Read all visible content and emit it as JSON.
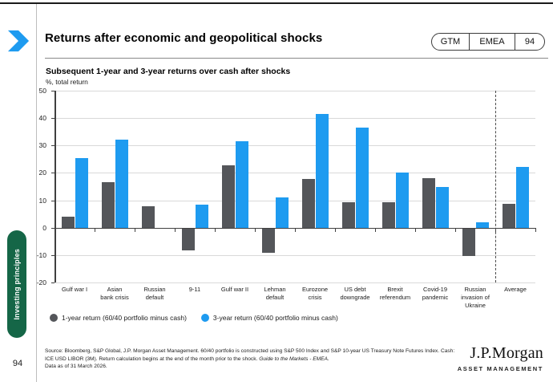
{
  "sidebar": {
    "section_label": "Investing principles",
    "section_color": "#156647",
    "page_number": "94"
  },
  "header": {
    "title": "Returns after economic and geopolitical shocks",
    "badge": {
      "gtm": "GTM",
      "region": "EMEA",
      "page": "94"
    }
  },
  "chart": {
    "subtitle": "Subsequent 1-year and 3-year returns over cash after shocks",
    "unit_label": "%, total return"
  },
  "chart_data": {
    "type": "bar",
    "title": "Subsequent 1-year and 3-year returns over cash after shocks",
    "ylabel": "%, total return",
    "ylim": [
      -20,
      50
    ],
    "ytick_interval": 10,
    "grid": true,
    "legend_position": "bottom",
    "categories": [
      "Gulf war I",
      "Asian\nbank crisis",
      "Russian\ndefault",
      "9-11",
      "Gulf war II",
      "Lehman\ndefault",
      "Eurozone\ncrisis",
      "US debt\ndowngrade",
      "Brexit\nreferendum",
      "Covid-19\npandemic",
      "Russian\ninvasion of\nUkraine",
      "Average"
    ],
    "series": [
      {
        "name": "1-year return (60/40 portfolio minus cash)",
        "color": "#54565A",
        "values": [
          4.0,
          16.5,
          7.8,
          -8.4,
          22.7,
          -9.3,
          17.8,
          9.4,
          9.2,
          18.0,
          -10.3,
          8.7
        ]
      },
      {
        "name": "3-year return (60/40 portfolio minus cash)",
        "color": "#1E9BF0",
        "values": [
          25.4,
          32.1,
          0,
          8.4,
          31.5,
          11.1,
          41.5,
          36.4,
          20.2,
          14.9,
          2.0,
          22.2
        ]
      }
    ],
    "separator_before_category": "Average"
  },
  "footer": {
    "source_text": "Source: Bloomberg, S&P Global, J.P. Morgan Asset Management. 60/40 portfolio is constructed using S&P 500 Index and S&P 10-year US Treasury Note Futures Index. Cash: ICE USD LIBOR (3M). Return calculation begins at the end of the month prior to the shock.",
    "source_italic": "Guide to the Markets - EMEA.",
    "data_as_of": "Data as of 31 March 2026.",
    "logo_main": "J.P.Morgan",
    "logo_sub": "ASSET MANAGEMENT"
  }
}
